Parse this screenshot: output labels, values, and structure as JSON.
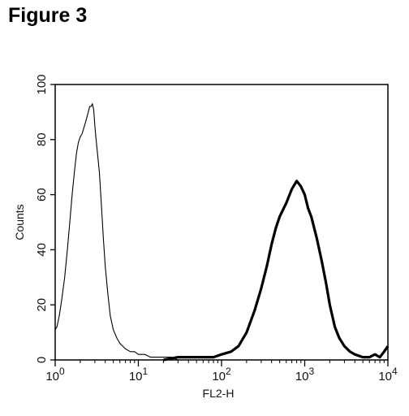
{
  "figure": {
    "title": "Figure 3"
  },
  "chart_data": {
    "type": "line",
    "xlabel": "FL2-H",
    "ylabel": "Counts",
    "xscale": "log",
    "xlim": [
      1,
      10000
    ],
    "ylim": [
      0,
      100
    ],
    "yticks": [
      0,
      20,
      40,
      60,
      80,
      100
    ],
    "xticks": [
      {
        "base": "10",
        "exp": "0"
      },
      {
        "base": "10",
        "exp": "1"
      },
      {
        "base": "10",
        "exp": "2"
      },
      {
        "base": "10",
        "exp": "3"
      },
      {
        "base": "10",
        "exp": "4"
      }
    ],
    "grid": false,
    "series": [
      {
        "style": "thin",
        "x": [
          1.0,
          1.05,
          1.12,
          1.2,
          1.3,
          1.4,
          1.5,
          1.6,
          1.7,
          1.8,
          1.9,
          2.0,
          2.1,
          2.2,
          2.3,
          2.4,
          2.5,
          2.6,
          2.7,
          2.8,
          2.9,
          3.0,
          3.1,
          3.2,
          3.4,
          3.6,
          3.8,
          4.0,
          4.3,
          4.6,
          5.0,
          5.5,
          6.0,
          6.5,
          7.0,
          8.0,
          9.0,
          10.0,
          12.0,
          14.0,
          17.0,
          20.0,
          25.0,
          30.0
        ],
        "y": [
          11,
          12,
          16,
          22,
          30,
          40,
          50,
          60,
          68,
          75,
          79,
          81,
          82,
          84,
          86,
          88,
          90,
          92,
          92,
          93,
          91,
          85,
          80,
          76,
          68,
          56,
          44,
          34,
          24,
          16,
          11,
          8,
          6,
          5,
          4,
          3,
          3,
          2,
          2,
          1,
          1,
          1,
          1,
          0
        ]
      },
      {
        "style": "thick",
        "x": [
          20,
          30,
          40,
          60,
          80,
          100,
          130,
          160,
          200,
          250,
          300,
          350,
          400,
          450,
          500,
          600,
          700,
          800,
          900,
          1000,
          1100,
          1200,
          1400,
          1600,
          1800,
          2000,
          2300,
          2600,
          3000,
          3500,
          4000,
          5000,
          6000,
          7000,
          8000,
          9000,
          10000
        ],
        "y": [
          0,
          1,
          1,
          1,
          1,
          2,
          3,
          5,
          10,
          18,
          26,
          34,
          42,
          48,
          52,
          57,
          62,
          65,
          63,
          60,
          55,
          52,
          44,
          36,
          28,
          20,
          12,
          8,
          5,
          3,
          2,
          1,
          1,
          2,
          1,
          3,
          5
        ]
      }
    ]
  }
}
